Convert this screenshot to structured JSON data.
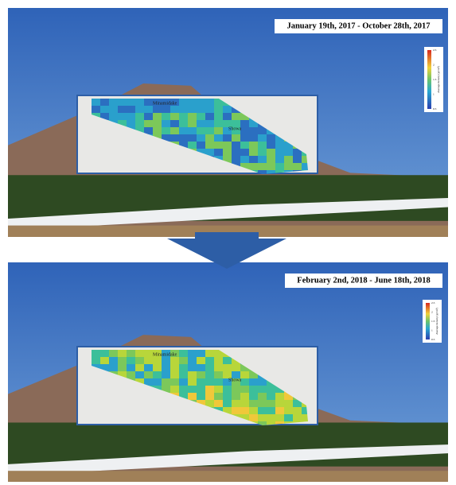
{
  "panels": [
    {
      "date": "January 19th, 2017 - October 28th, 2017",
      "labels": [
        "Minamidake",
        "Showa"
      ],
      "colorbar": {
        "title": "Average density (g/cm³)",
        "ticks": [
          "2.5",
          "2",
          "1.5",
          "1",
          "0.5"
        ]
      }
    },
    {
      "date": "February 2nd, 2018 - June 18th, 2018",
      "labels": [
        "Minamidake",
        "Showa"
      ],
      "colorbar": {
        "title": "Average density (g/cm³)",
        "ticks": [
          "2.5",
          "2",
          "1.5",
          "1",
          "0.5"
        ]
      }
    }
  ]
}
